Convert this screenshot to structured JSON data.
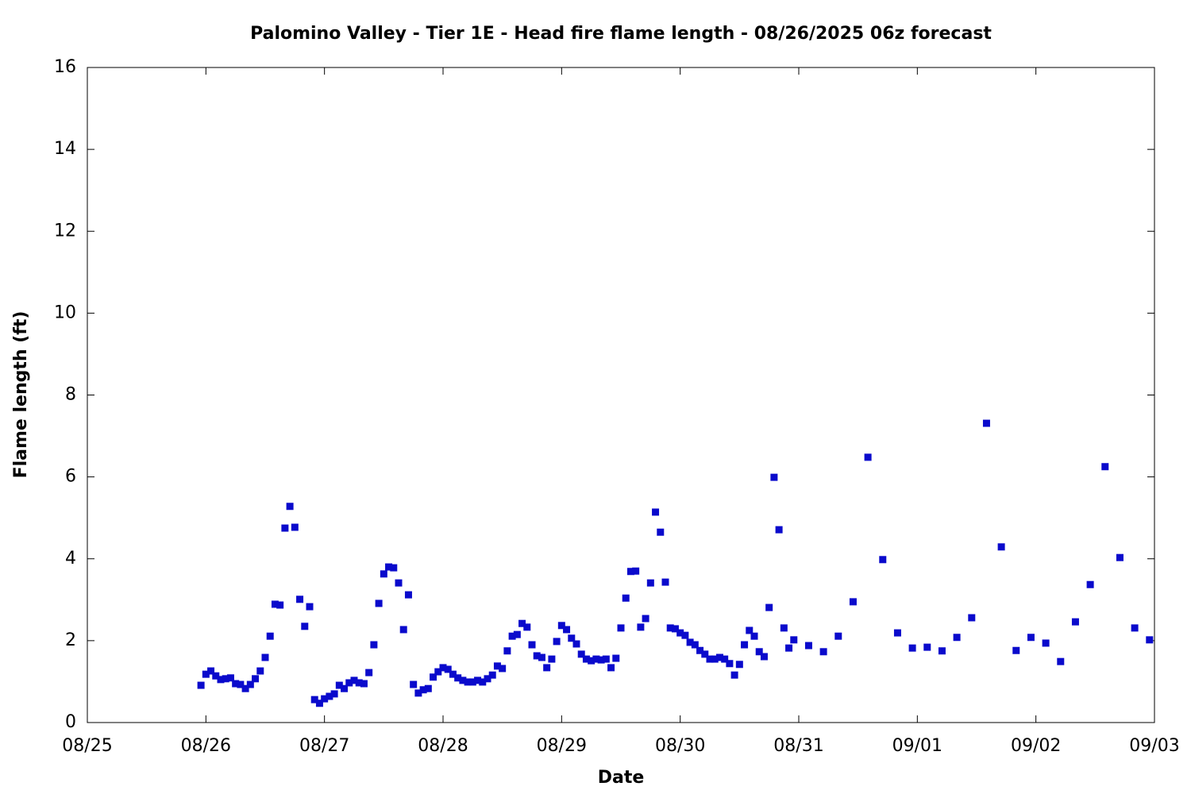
{
  "chart_data": {
    "type": "scatter",
    "title": "Palomino Valley - Tier 1E - Head fire flame length - 08/26/2025 06z forecast",
    "xlabel": "Date",
    "ylabel": "Flame length (ft)",
    "xlim": [
      0,
      216
    ],
    "xticks": [
      {
        "value": 0,
        "label": "08/25"
      },
      {
        "value": 24,
        "label": "08/26"
      },
      {
        "value": 48,
        "label": "08/27"
      },
      {
        "value": 72,
        "label": "08/28"
      },
      {
        "value": 96,
        "label": "08/29"
      },
      {
        "value": 120,
        "label": "08/30"
      },
      {
        "value": 144,
        "label": "08/31"
      },
      {
        "value": 168,
        "label": "09/01"
      },
      {
        "value": 192,
        "label": "09/02"
      },
      {
        "value": 216,
        "label": "09/03"
      }
    ],
    "ylim": [
      0,
      16
    ],
    "yticks": [
      0,
      2,
      4,
      6,
      8,
      10,
      12,
      14,
      16
    ],
    "grid": false,
    "series": [
      {
        "color": "#0a0acc",
        "x": [
          23,
          24,
          25,
          26,
          27,
          28,
          29,
          30,
          31,
          32,
          33,
          34,
          35,
          36,
          37,
          38,
          39,
          40,
          41,
          42,
          43,
          44,
          45,
          46,
          47,
          48,
          49,
          50,
          51,
          52,
          53,
          54,
          55,
          56,
          57,
          58,
          59,
          60,
          61,
          62,
          63,
          64,
          65,
          66,
          67,
          68,
          69,
          70,
          71,
          72,
          73,
          74,
          75,
          76,
          77,
          78,
          79,
          80,
          81,
          82,
          83,
          84,
          85,
          86,
          87,
          88,
          89,
          90,
          91,
          92,
          93,
          94,
          95,
          96,
          97,
          98,
          99,
          100,
          101,
          102,
          103,
          104,
          105,
          106,
          107,
          108,
          109,
          110,
          111,
          112,
          113,
          114,
          115,
          116,
          117,
          118,
          119,
          120,
          121,
          122,
          123,
          124,
          125,
          126,
          127,
          128,
          129,
          130,
          131,
          132,
          133,
          134,
          135,
          136,
          137,
          138,
          139,
          140,
          141,
          142,
          143,
          146,
          149,
          152,
          155,
          158,
          161,
          164,
          167,
          170,
          173,
          176,
          179,
          182,
          185,
          188,
          191,
          194,
          197,
          200,
          203,
          206,
          209,
          212,
          215
        ],
        "values": [
          0.91,
          1.18,
          1.26,
          1.14,
          1.05,
          1.07,
          1.09,
          0.95,
          0.93,
          0.83,
          0.93,
          1.07,
          1.26,
          1.59,
          2.11,
          2.89,
          2.87,
          4.75,
          5.28,
          4.77,
          3.01,
          2.35,
          2.83,
          0.56,
          0.47,
          0.58,
          0.64,
          0.7,
          0.91,
          0.83,
          0.97,
          1.03,
          0.97,
          0.95,
          1.22,
          1.9,
          2.91,
          3.63,
          3.8,
          3.78,
          3.41,
          2.27,
          3.12,
          0.93,
          0.72,
          0.8,
          0.83,
          1.11,
          1.24,
          1.34,
          1.3,
          1.18,
          1.09,
          1.03,
          0.99,
          0.99,
          1.03,
          0.99,
          1.07,
          1.16,
          1.38,
          1.32,
          1.75,
          2.11,
          2.15,
          2.42,
          2.33,
          1.9,
          1.63,
          1.59,
          1.34,
          1.55,
          1.98,
          2.37,
          2.27,
          2.06,
          1.92,
          1.67,
          1.55,
          1.51,
          1.55,
          1.53,
          1.55,
          1.34,
          1.57,
          2.31,
          3.04,
          3.69,
          3.7,
          2.33,
          2.54,
          3.41,
          5.14,
          4.65,
          3.43,
          2.31,
          2.29,
          2.19,
          2.13,
          1.96,
          1.9,
          1.76,
          1.67,
          1.55,
          1.55,
          1.59,
          1.55,
          1.44,
          1.16,
          1.42,
          1.9,
          2.25,
          2.11,
          1.73,
          1.61,
          2.81,
          5.99,
          4.71,
          2.31,
          1.82,
          2.02,
          1.88,
          1.73,
          2.11,
          2.95,
          6.48,
          3.98,
          2.19,
          1.82,
          1.84,
          1.75,
          2.08,
          2.56,
          7.31,
          4.29,
          1.76,
          2.08,
          1.94,
          1.49,
          2.46,
          3.37,
          6.25,
          4.03,
          2.31,
          2.02
        ]
      }
    ]
  }
}
